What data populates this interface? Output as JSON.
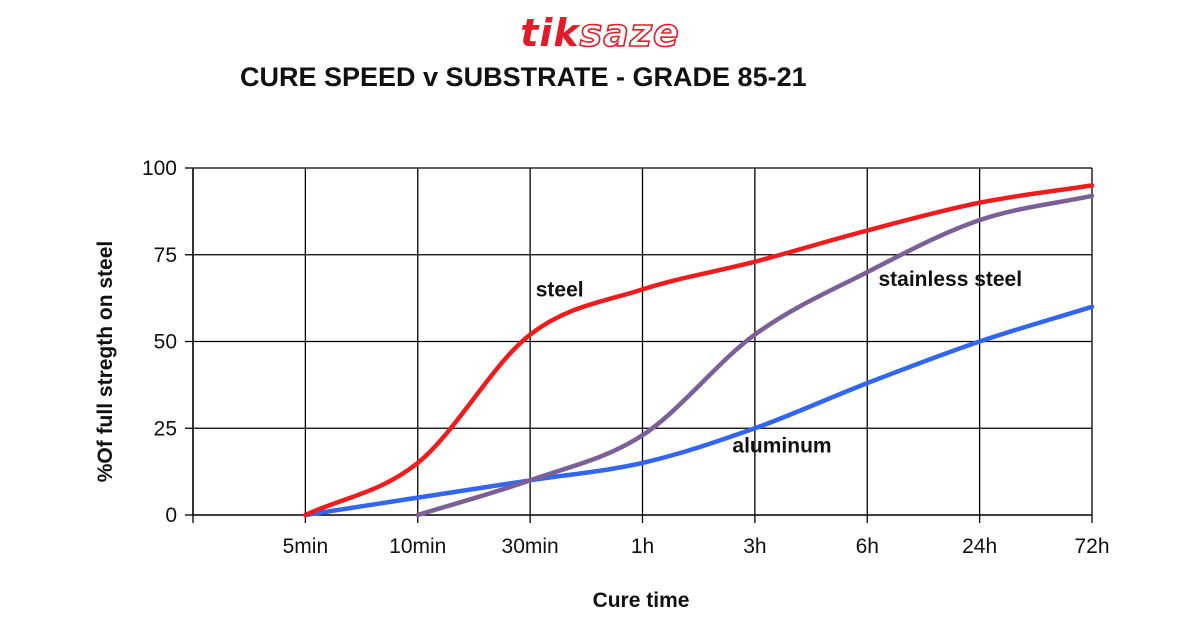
{
  "logo": {
    "part_a": "tik",
    "part_b": "saze"
  },
  "chart_data": {
    "type": "line",
    "title": "CURE SPEED v SUBSTRATE - GRADE 85-21",
    "xlabel": "Cure time",
    "ylabel": "%Of full  stregth on steel",
    "categories": [
      "",
      "5min",
      "10min",
      "30min",
      "1h",
      "3h",
      "6h",
      "24h",
      "72h"
    ],
    "ylim": [
      0,
      100
    ],
    "yticks": [
      0,
      25,
      50,
      75,
      100
    ],
    "grid": true,
    "series": [
      {
        "name": "steel",
        "color": "#ee1c1c",
        "points": [
          [
            1,
            0
          ],
          [
            2,
            15
          ],
          [
            3,
            52
          ],
          [
            4,
            65
          ],
          [
            5,
            73
          ],
          [
            6,
            82
          ],
          [
            7,
            90
          ],
          [
            8,
            95
          ]
        ],
        "label_at": [
          3.05,
          63
        ]
      },
      {
        "name": "stainless steel",
        "color": "#7b5f97",
        "points": [
          [
            2,
            0
          ],
          [
            3,
            10
          ],
          [
            4,
            23
          ],
          [
            5,
            52
          ],
          [
            6,
            70
          ],
          [
            7,
            85
          ],
          [
            8,
            92
          ]
        ],
        "label_at": [
          6.1,
          66
        ]
      },
      {
        "name": "aluminum",
        "color": "#3366ee",
        "points": [
          [
            1,
            0
          ],
          [
            2,
            5
          ],
          [
            3,
            10
          ],
          [
            4,
            15
          ],
          [
            5,
            25
          ],
          [
            6,
            38
          ],
          [
            7,
            50
          ],
          [
            8,
            60
          ]
        ],
        "label_at": [
          4.8,
          18
        ]
      }
    ]
  }
}
